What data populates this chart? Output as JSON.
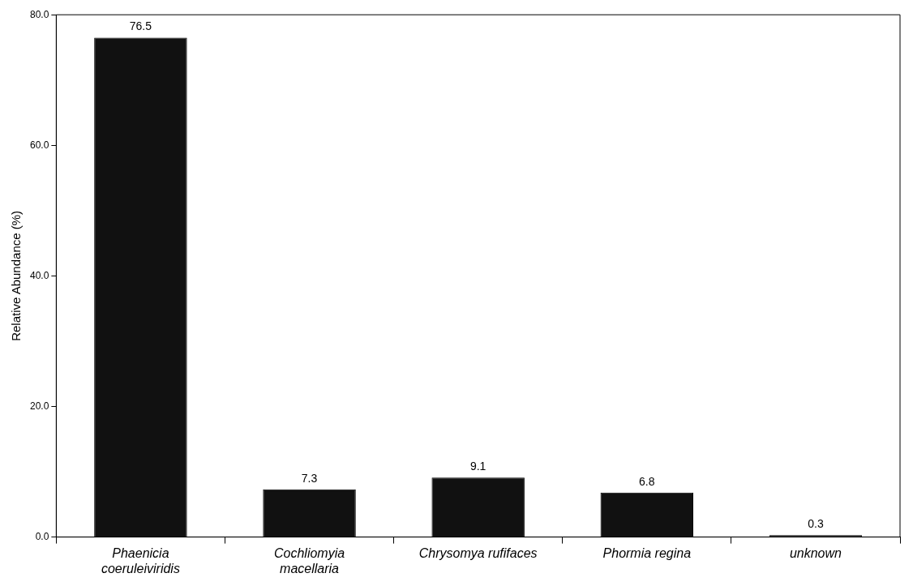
{
  "chart_data": {
    "type": "bar",
    "ylabel": "Relative Abundance (%)",
    "categories": [
      "Phaenicia coeruleiviridis",
      "Cochliomyia macellaria",
      "Chrysomya rufifaces",
      "Phormia regina",
      "unknown"
    ],
    "values": [
      76.5,
      7.3,
      9.1,
      6.8,
      0.3
    ],
    "color": "#111111",
    "ylim": [
      0,
      80
    ],
    "yticks": [
      {
        "value": 0,
        "label": "0.0"
      },
      {
        "value": 20,
        "label": "20.0"
      },
      {
        "value": 40,
        "label": "40.0"
      },
      {
        "value": 60,
        "label": "60.0"
      },
      {
        "value": 80,
        "label": "80.0"
      }
    ],
    "data_labels": true,
    "grid": false,
    "legend": false
  }
}
